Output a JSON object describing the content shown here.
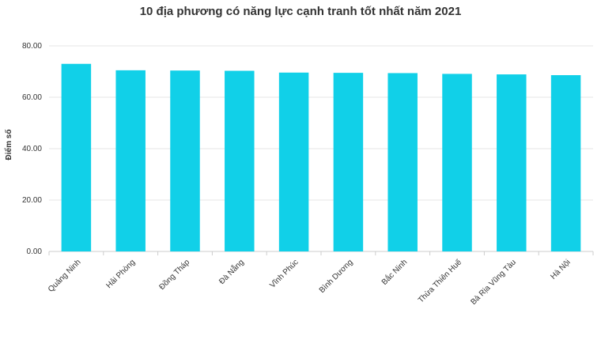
{
  "chart_data": {
    "type": "bar",
    "title": "10 địa phương có năng lực cạnh tranh tốt nhất năm 2021",
    "ylabel": "Điểm số",
    "xlabel": "",
    "categories": [
      "Quảng Ninh",
      "Hải Phòng",
      "Đồng Tháp",
      "Đà Nẵng",
      "Vĩnh Phúc",
      "Bình Dương",
      "Bắc Ninh",
      "Thừa Thiên Huế",
      "Bà Rịa Vũng Tàu",
      "Hà Nội"
    ],
    "values": [
      73.0,
      70.5,
      70.4,
      70.3,
      69.6,
      69.5,
      69.4,
      69.1,
      68.9,
      68.6
    ],
    "ylim": [
      0,
      80
    ],
    "yticks": [
      "0.00",
      "20.00",
      "40.00",
      "60.00",
      "80.00"
    ],
    "grid": true,
    "colors": {
      "bar": "#11d0e8",
      "grid": "#e6e6e6",
      "axis": "#cccccc"
    }
  }
}
